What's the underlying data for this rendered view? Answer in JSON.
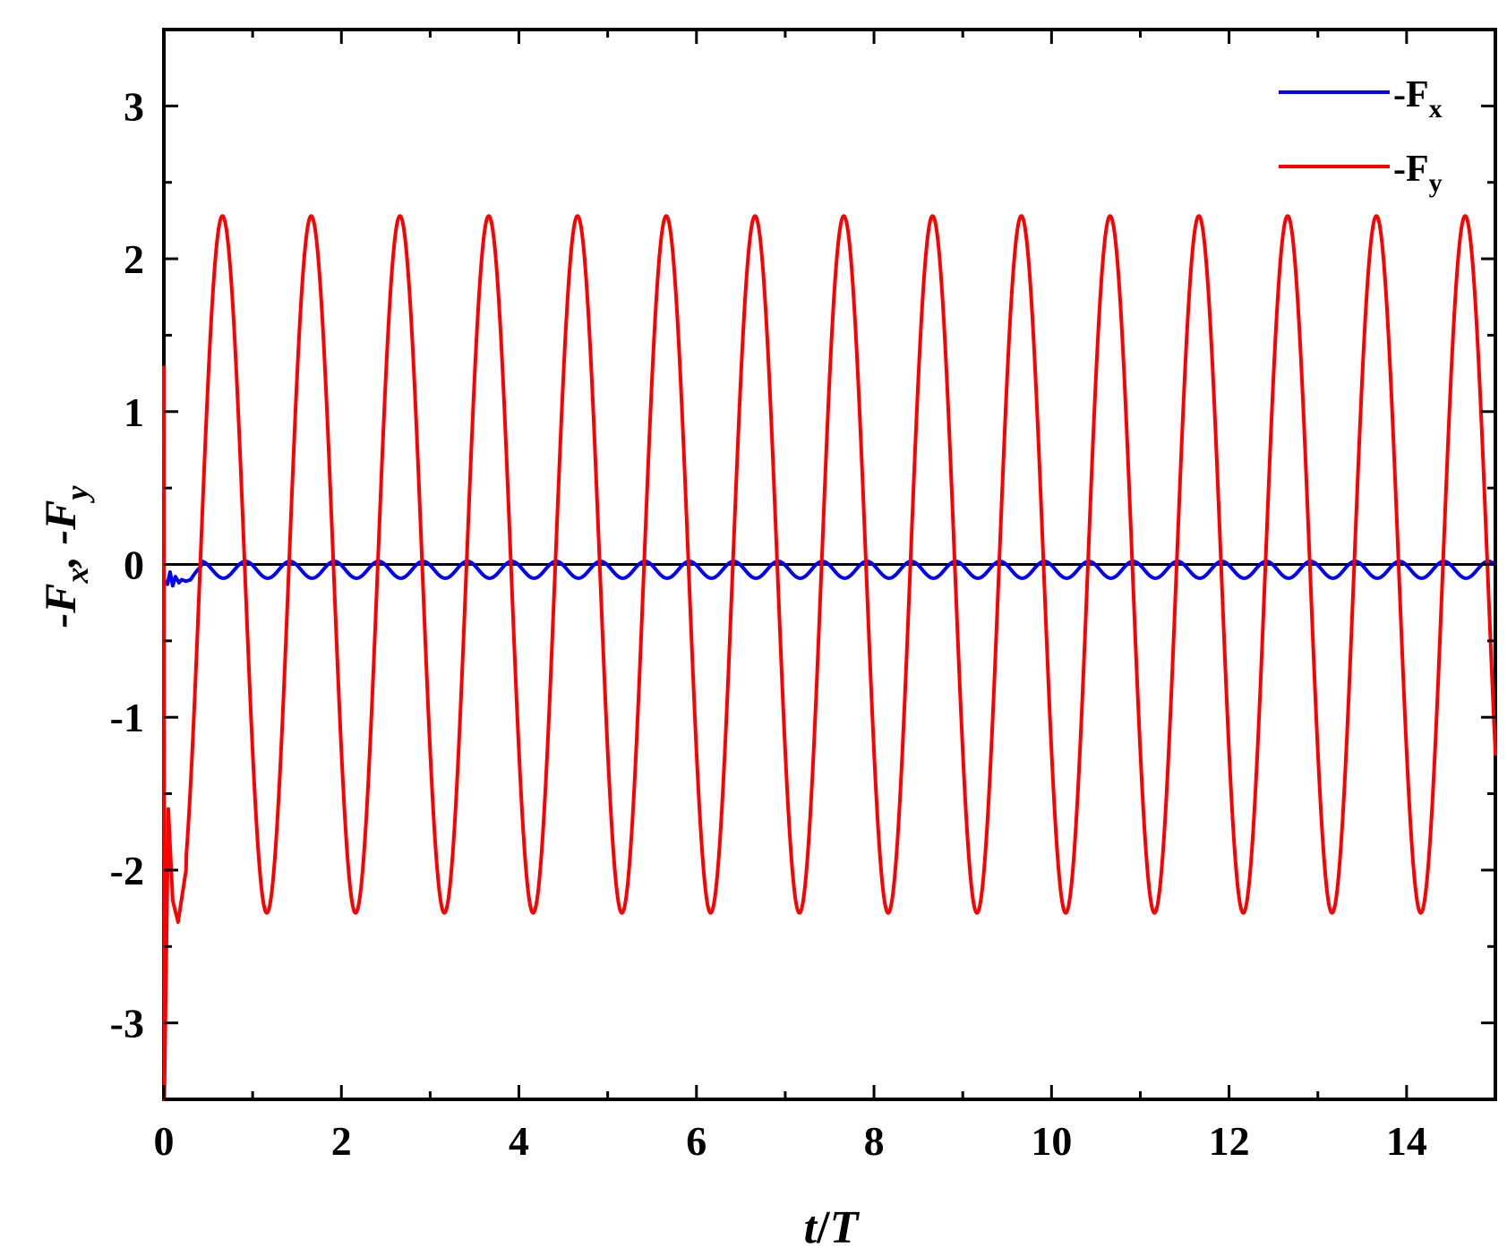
{
  "chart_data": {
    "type": "line",
    "title": "",
    "xlabel": {
      "var": "t",
      "sep": "/",
      "unit": "T"
    },
    "ylabel": {
      "text": "-F",
      "sub1": "x",
      "sep": ", -F",
      "sub2": "y"
    },
    "xlim": [
      0,
      15
    ],
    "ylim": [
      -3.5,
      3.5
    ],
    "xticks": [
      0,
      2,
      4,
      6,
      8,
      10,
      12,
      14
    ],
    "xtick_labels": [
      "0",
      "2",
      "4",
      "6",
      "8",
      "10",
      "12",
      "14"
    ],
    "yticks": [
      3,
      2,
      1,
      0,
      -1,
      -2,
      -3
    ],
    "ytick_labels": [
      "3",
      "2",
      "1",
      "0",
      "-1",
      "-2",
      "-3"
    ],
    "grid": false,
    "zero_line": true,
    "legend_position": "top-right",
    "series": [
      {
        "name": "-F",
        "sub": "x",
        "color": "#0000ff",
        "model": "periodic-small",
        "period": 0.5,
        "min": -0.09,
        "max": 0.02,
        "transient": [
          [
            0,
            -0.1
          ],
          [
            0.04,
            -0.13
          ],
          [
            0.07,
            -0.05
          ],
          [
            0.1,
            -0.14
          ],
          [
            0.13,
            -0.08
          ],
          [
            0.17,
            -0.12
          ],
          [
            0.2,
            -0.1
          ],
          [
            0.25,
            -0.11
          ],
          [
            0.3,
            -0.1
          ],
          [
            0.36,
            -0.05
          ],
          [
            0.42,
            -0.01
          ]
        ]
      },
      {
        "name": "-F",
        "sub": "y",
        "color": "#ff0000",
        "model": "sinusoid",
        "period": 1.0,
        "amplitude": 2.28,
        "first_peak_t": 0.66,
        "transient": [
          [
            0,
            1.3
          ],
          [
            0.005,
            -3.5
          ],
          [
            0.05,
            -1.6
          ],
          [
            0.1,
            -2.2
          ],
          [
            0.16,
            -2.34
          ],
          [
            0.25,
            -2.0
          ]
        ],
        "end_value": -1.25
      }
    ]
  }
}
